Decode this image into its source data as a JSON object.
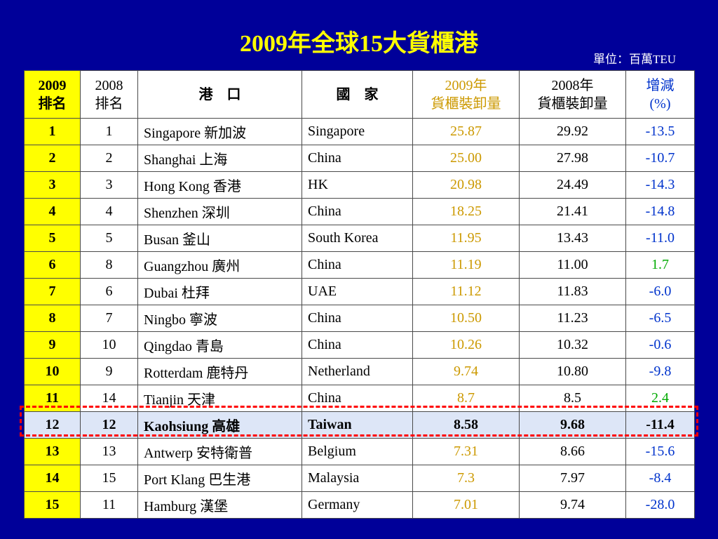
{
  "title": "2009年全球15大貨櫃港",
  "unit": "單位：百萬TEU",
  "headers": {
    "rank_2009": "2009\n排名",
    "rank_2008": "2008\n排名",
    "port": "港　口",
    "country": "國　家",
    "vol_2009": "2009年\n貨櫃裝卸量",
    "vol_2008": "2008年\n貨櫃裝卸量",
    "change": "增減\n(%)"
  },
  "rows": [
    {
      "rank_2009": "1",
      "rank_2008": "1",
      "port": "Singapore 新加波",
      "country": "Singapore",
      "vol_2009": "25.87",
      "vol_2008": "29.92",
      "change": "-13.5",
      "change_sign": "neg"
    },
    {
      "rank_2009": "2",
      "rank_2008": "2",
      "port": "Shanghai 上海",
      "country": "China",
      "vol_2009": "25.00",
      "vol_2008": "27.98",
      "change": "-10.7",
      "change_sign": "neg"
    },
    {
      "rank_2009": "3",
      "rank_2008": "3",
      "port": "Hong Kong 香港",
      "country": "HK",
      "vol_2009": "20.98",
      "vol_2008": "24.49",
      "change": "-14.3",
      "change_sign": "neg"
    },
    {
      "rank_2009": "4",
      "rank_2008": "4",
      "port": "Shenzhen 深圳",
      "country": "China",
      "vol_2009": "18.25",
      "vol_2008": "21.41",
      "change": "-14.8",
      "change_sign": "neg"
    },
    {
      "rank_2009": "5",
      "rank_2008": "5",
      "port": "Busan 釜山",
      "country": "South Korea",
      "vol_2009": "11.95",
      "vol_2008": "13.43",
      "change": "-11.0",
      "change_sign": "neg"
    },
    {
      "rank_2009": "6",
      "rank_2008": "8",
      "port": "Guangzhou 廣州",
      "country": "China",
      "vol_2009": "11.19",
      "vol_2008": "11.00",
      "change": "1.7",
      "change_sign": "pos"
    },
    {
      "rank_2009": "7",
      "rank_2008": "6",
      "port": "Dubai 杜拜",
      "country": "UAE",
      "vol_2009": "11.12",
      "vol_2008": "11.83",
      "change": "-6.0",
      "change_sign": "neg"
    },
    {
      "rank_2009": "8",
      "rank_2008": "7",
      "port": "Ningbo 寧波",
      "country": "China",
      "vol_2009": "10.50",
      "vol_2008": "11.23",
      "change": "-6.5",
      "change_sign": "neg"
    },
    {
      "rank_2009": "9",
      "rank_2008": "10",
      "port": "Qingdao 青島",
      "country": "China",
      "vol_2009": "10.26",
      "vol_2008": "10.32",
      "change": "-0.6",
      "change_sign": "neg"
    },
    {
      "rank_2009": "10",
      "rank_2008": "9",
      "port": "Rotterdam 鹿特丹",
      "country": "Netherland",
      "vol_2009": "9.74",
      "vol_2008": "10.80",
      "change": "-9.8",
      "change_sign": "neg"
    },
    {
      "rank_2009": "11",
      "rank_2008": "14",
      "port": "Tianjin 天津",
      "country": "China",
      "vol_2009": "8.7",
      "vol_2008": "8.5",
      "change": "2.4",
      "change_sign": "pos"
    },
    {
      "rank_2009": "12",
      "rank_2008": "12",
      "port": "Kaohsiung 高雄",
      "country": "Taiwan",
      "vol_2009": "8.58",
      "vol_2008": "9.68",
      "change": "-11.4",
      "change_sign": "neg",
      "highlight": true
    },
    {
      "rank_2009": "13",
      "rank_2008": "13",
      "port": "Antwerp 安特衛普",
      "country": "Belgium",
      "vol_2009": "7.31",
      "vol_2008": "8.66",
      "change": "-15.6",
      "change_sign": "neg"
    },
    {
      "rank_2009": "14",
      "rank_2008": "15",
      "port": "Port Klang 巴生港",
      "country": "Malaysia",
      "vol_2009": "7.3",
      "vol_2008": "7.97",
      "change": "-8.4",
      "change_sign": "neg"
    },
    {
      "rank_2009": "15",
      "rank_2008": "11",
      "port": "Hamburg 漢堡",
      "country": "Germany",
      "vol_2009": "7.01",
      "vol_2008": "9.74",
      "change": "-28.0",
      "change_sign": "neg"
    }
  ],
  "colors": {
    "background": "#000099",
    "title": "#ffff00",
    "vol_2009": "#cc9900",
    "negative": "#0033cc",
    "positive": "#00aa00",
    "highlight_row": "#dde6f7",
    "highlight_border": "#ff0000"
  }
}
